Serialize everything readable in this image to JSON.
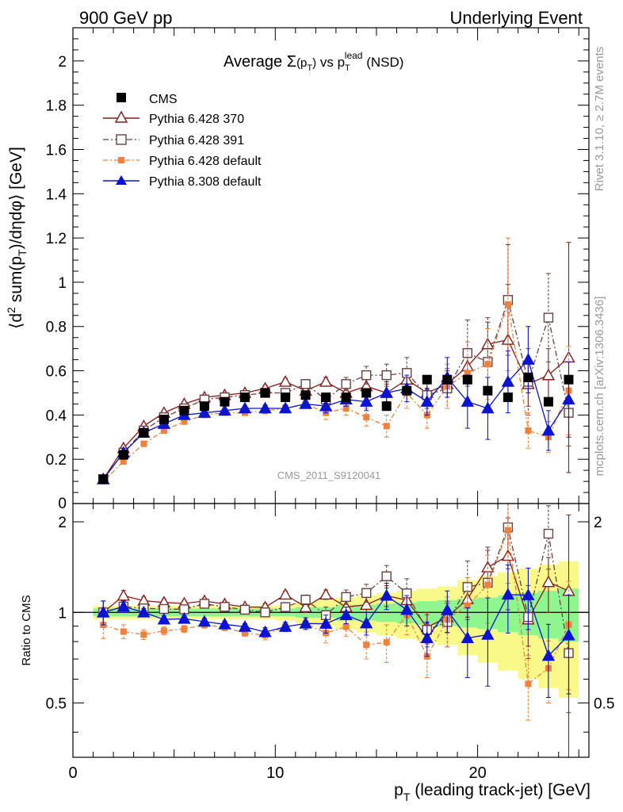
{
  "header": {
    "left": "900 GeV pp",
    "right": "Underlying Event"
  },
  "side_labels": {
    "rivet": "Rivet 3.1.10, ≥ 2.7M events",
    "mcplots": "mcplots.cern.ch [arXiv:1306.3436]"
  },
  "watermark": "CMS_2011_S9120041",
  "chart_data": {
    "type": "line",
    "title": {
      "base": "Average ",
      "sigma": "Σ",
      "pt_open": "(p",
      "pt_sub": "T",
      "pt_close": ")",
      "vs": " vs p",
      "lead_sub": "T",
      "lead_sup": "lead",
      "nsd": " (NSD)"
    },
    "ylabel": {
      "open": "⟨d",
      "sup2": "2",
      "sum": " sum(p",
      "sub": "T",
      "rest": ")/dηdφ⟩ [GeV]"
    },
    "ratio_ylabel": "Ratio to CMS",
    "xlabel": {
      "p": "p",
      "sub": "T",
      "rest": " (leading track-jet) [GeV]"
    },
    "xlim": [
      0,
      25.5
    ],
    "ylim": [
      0,
      2.15
    ],
    "ratio_ylim": [
      0.33,
      2.3
    ],
    "ratio_log": true,
    "x_ticks": [
      0,
      10,
      20
    ],
    "y_ticks": [
      0.2,
      0.4,
      0.6,
      0.8,
      1,
      1.2,
      1.4,
      1.6,
      1.8,
      2
    ],
    "y_tick_labels": [
      "0.2",
      "0.4",
      "0.6",
      "0.8",
      "1",
      "1.2",
      "1.4",
      "1.6",
      "1.8",
      "2"
    ],
    "bottom_cut_label": "0",
    "ratio_ticks_left": [
      {
        "value": 0.5,
        "label": "0.5"
      },
      {
        "value": 1,
        "label": "1"
      },
      {
        "value": 2,
        "label": "2"
      }
    ],
    "ratio_ticks_right": [
      {
        "value": 0.5,
        "label": "0.5"
      },
      {
        "value": 2,
        "label": "2"
      }
    ],
    "x": [
      1.5,
      2.5,
      3.5,
      4.5,
      5.5,
      6.5,
      7.5,
      8.5,
      9.5,
      10.5,
      11.5,
      12.5,
      13.5,
      14.5,
      15.5,
      16.5,
      17.5,
      18.5,
      19.5,
      20.5,
      21.5,
      22.5,
      23.5,
      24.5
    ],
    "cms": {
      "name": "CMS",
      "values": [
        0.11,
        0.22,
        0.32,
        0.38,
        0.42,
        0.44,
        0.46,
        0.48,
        0.5,
        0.48,
        0.49,
        0.48,
        0.48,
        0.5,
        0.44,
        0.51,
        0.56,
        0.56,
        0.56,
        0.51,
        0.48,
        0.57,
        0.46,
        0.56
      ],
      "band_inner": [
        0.03,
        0.03,
        0.03,
        0.03,
        0.03,
        0.03,
        0.03,
        0.03,
        0.03,
        0.03,
        0.04,
        0.04,
        0.06,
        0.06,
        0.07,
        0.08,
        0.09,
        0.1,
        0.11,
        0.12,
        0.14,
        0.16,
        0.18,
        0.2
      ],
      "band_outer": [
        0.05,
        0.05,
        0.05,
        0.05,
        0.05,
        0.05,
        0.05,
        0.05,
        0.05,
        0.06,
        0.08,
        0.1,
        0.12,
        0.14,
        0.16,
        0.18,
        0.2,
        0.22,
        0.28,
        0.32,
        0.36,
        0.4,
        0.44,
        0.48
      ]
    },
    "series": [
      {
        "name": "Pythia 6.428 370",
        "color": "#8b1a1a",
        "dash": "",
        "marker": "triangle-open",
        "values": [
          0.11,
          0.25,
          0.35,
          0.41,
          0.45,
          0.48,
          0.49,
          0.5,
          0.52,
          0.55,
          0.51,
          0.55,
          0.5,
          0.53,
          0.5,
          0.56,
          0.5,
          0.54,
          0.62,
          0.72,
          0.74,
          0.54,
          0.58,
          0.66
        ],
        "err": [
          0.01,
          0.01,
          0.01,
          0.01,
          0.01,
          0.01,
          0.01,
          0.01,
          0.015,
          0.015,
          0.02,
          0.02,
          0.03,
          0.03,
          0.04,
          0.05,
          0.06,
          0.06,
          0.08,
          0.1,
          0.25,
          0.1,
          0.12,
          0.52
        ]
      },
      {
        "name": "Pythia 6.428 391",
        "color": "#6b4040",
        "dash": "7,3,2,3",
        "marker": "square-open",
        "values": [
          0.11,
          0.23,
          0.33,
          0.39,
          0.43,
          0.47,
          0.48,
          0.49,
          0.5,
          0.5,
          0.54,
          0.47,
          0.54,
          0.58,
          0.58,
          0.59,
          0.49,
          0.52,
          0.68,
          0.64,
          0.92,
          0.55,
          0.84,
          0.41
        ],
        "err": [
          0.01,
          0.01,
          0.01,
          0.01,
          0.01,
          0.01,
          0.01,
          0.01,
          0.015,
          0.015,
          0.02,
          0.03,
          0.03,
          0.04,
          0.05,
          0.07,
          0.06,
          0.09,
          0.15,
          0.2,
          0.25,
          0.15,
          0.2,
          0.15
        ]
      },
      {
        "name": "Pythia 6.428 default",
        "color": "#f0813a",
        "dash": "6,3,2,3",
        "marker": "square-filled-small",
        "values": [
          0.1,
          0.19,
          0.27,
          0.33,
          0.37,
          0.4,
          0.41,
          0.41,
          0.42,
          0.43,
          0.45,
          0.41,
          0.43,
          0.39,
          0.35,
          0.5,
          0.4,
          0.53,
          0.59,
          0.63,
          0.9,
          0.33,
          0.3,
          0.51
        ],
        "err": [
          0.01,
          0.01,
          0.01,
          0.01,
          0.01,
          0.01,
          0.01,
          0.01,
          0.015,
          0.015,
          0.02,
          0.03,
          0.03,
          0.04,
          0.05,
          0.07,
          0.06,
          0.1,
          0.14,
          0.16,
          0.3,
          0.08,
          0.07,
          0.2
        ]
      },
      {
        "name": "Pythia 8.308 default",
        "color": "#0b14d0",
        "dash": "",
        "marker": "triangle-filled",
        "values": [
          0.11,
          0.23,
          0.32,
          0.36,
          0.4,
          0.41,
          0.42,
          0.43,
          0.43,
          0.43,
          0.45,
          0.44,
          0.47,
          0.46,
          0.5,
          0.52,
          0.46,
          0.57,
          0.46,
          0.43,
          0.55,
          0.65,
          0.33,
          0.47
        ],
        "err": [
          0.01,
          0.01,
          0.01,
          0.01,
          0.01,
          0.01,
          0.01,
          0.01,
          0.015,
          0.015,
          0.02,
          0.03,
          0.03,
          0.04,
          0.05,
          0.06,
          0.06,
          0.09,
          0.12,
          0.14,
          0.14,
          0.15,
          0.09,
          0.17
        ]
      }
    ],
    "colors": {
      "band_inner": "#8ff58f",
      "band_outer": "#f9f98a",
      "cms_marker": "#000000"
    }
  }
}
